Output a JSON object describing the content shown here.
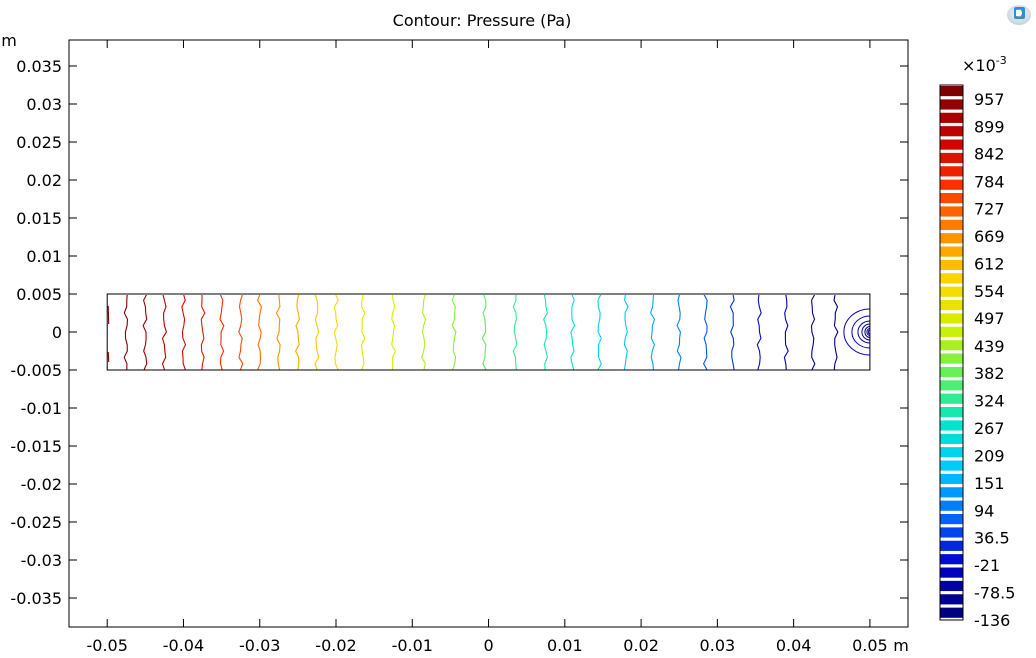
{
  "chart_data": {
    "type": "contour",
    "title": "Contour: Pressure (Pa)",
    "xunit": "m",
    "yunit": "m",
    "xlim": [
      -0.055,
      0.055
    ],
    "ylim": [
      -0.039,
      0.039
    ],
    "xticks": [
      "-0.05",
      "-0.04",
      "-0.03",
      "-0.02",
      "-0.01",
      "0",
      "0.01",
      "0.02",
      "0.03",
      "0.04",
      "0.05"
    ],
    "xtick_values": [
      -0.05,
      -0.04,
      -0.03,
      -0.02,
      -0.01,
      0,
      0.01,
      0.02,
      0.03,
      0.04,
      0.05
    ],
    "yticks": [
      "0.035",
      "0.03",
      "0.025",
      "0.02",
      "0.015",
      "0.01",
      "0.005",
      "0",
      "-0.005",
      "-0.01",
      "-0.015",
      "-0.02",
      "-0.025",
      "-0.03",
      "-0.035"
    ],
    "ytick_values": [
      0.035,
      0.03,
      0.025,
      0.02,
      0.015,
      0.01,
      0.005,
      0,
      -0.005,
      -0.01,
      -0.015,
      -0.02,
      -0.025,
      -0.03,
      -0.035
    ],
    "domain": {
      "x": [
        -0.05,
        0.05
      ],
      "y": [
        -0.005,
        0.005
      ]
    },
    "contour_x_positions": [
      -0.0475,
      -0.045,
      -0.0425,
      -0.04,
      -0.0375,
      -0.035,
      -0.0325,
      -0.03,
      -0.0275,
      -0.025,
      -0.0225,
      -0.02,
      -0.0165,
      -0.0125,
      -0.0085,
      -0.0045,
      -0.0005,
      0.0035,
      0.0075,
      0.011,
      0.0145,
      0.018,
      0.0215,
      0.025,
      0.0285,
      0.032,
      0.0355,
      0.039,
      0.0425,
      0.0455
    ],
    "source_point": [
      0.05,
      0
    ],
    "colorbar": {
      "multiplier": "×10",
      "exponent": "-3",
      "labels": [
        "957",
        "899",
        "842",
        "784",
        "727",
        "669",
        "612",
        "554",
        "497",
        "439",
        "382",
        "324",
        "267",
        "209",
        "151",
        "94",
        "36.5",
        "-21",
        "-78.5",
        "-136"
      ],
      "values": [
        957,
        899,
        842,
        784,
        727,
        669,
        612,
        554,
        497,
        439,
        382,
        324,
        267,
        209,
        151,
        94,
        36.5,
        -21,
        -78.5,
        -136
      ],
      "min": -136,
      "max": 986
    },
    "colormap": [
      "#7f0000",
      "#c80000",
      "#ff3000",
      "#ff8c00",
      "#ffd700",
      "#d2f000",
      "#5ff05f",
      "#00e6c8",
      "#00c8ff",
      "#0064ff",
      "#0000c8",
      "#000080"
    ],
    "grid": false,
    "legend_position": "right"
  }
}
